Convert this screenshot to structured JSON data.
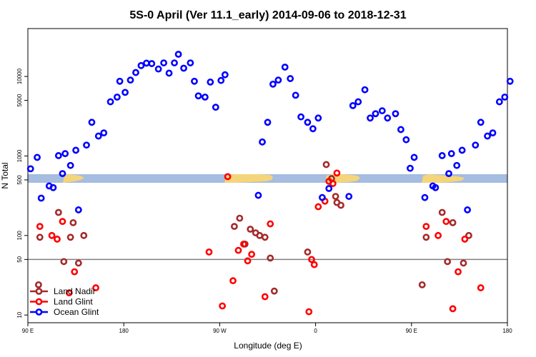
{
  "chart_data": {
    "type": "scatter",
    "title": "5S-0 April (Ver 11.1_early)   2014-09-06 to 2018-12-31",
    "xlabel": "Longitude (deg E)",
    "ylabel": "N Total",
    "y_scale": "log",
    "xlim": [
      90,
      450
    ],
    "ylim": [
      8,
      40000
    ],
    "x_ticks": [
      {
        "value": 90,
        "label": "90 E"
      },
      {
        "value": 162,
        "label": "180"
      },
      {
        "value": 234,
        "label": "90 W"
      },
      {
        "value": 306,
        "label": "0"
      },
      {
        "value": 378,
        "label": "90 E"
      },
      {
        "value": 450,
        "label": "180"
      }
    ],
    "y_ticks": [
      {
        "value": 10,
        "label": "10"
      },
      {
        "value": 50,
        "label": "50"
      },
      {
        "value": 100,
        "label": "100"
      },
      {
        "value": 500,
        "label": "500"
      },
      {
        "value": 1000,
        "label": "1000"
      },
      {
        "value": 5000,
        "label": "5000"
      },
      {
        "value": 10000,
        "label": "10000"
      }
    ],
    "reference_line": {
      "y": 50,
      "color": "#808080"
    },
    "legend": {
      "position": "bottom-left"
    },
    "series": [
      {
        "name": "Land Nadir",
        "color": "#a52a2a",
        "points": [
          [
            98,
            24
          ],
          [
            99,
            95
          ],
          [
            113,
            195
          ],
          [
            117,
            47
          ],
          [
            122,
            95
          ],
          [
            124,
            145
          ],
          [
            128,
            45
          ],
          [
            132,
            100
          ],
          [
            245,
            130
          ],
          [
            249,
            165
          ],
          [
            253,
            78
          ],
          [
            257,
            120
          ],
          [
            261,
            108
          ],
          [
            264,
            100
          ],
          [
            268,
            95
          ],
          [
            272,
            52
          ],
          [
            275,
            20
          ],
          [
            300,
            62
          ],
          [
            314,
            780
          ],
          [
            318,
            520
          ],
          [
            321,
            310
          ],
          [
            322,
            260
          ],
          [
            325,
            240
          ],
          [
            386,
            24
          ],
          [
            389,
            95
          ],
          [
            401,
            195
          ],
          [
            405,
            47
          ],
          [
            409,
            145
          ],
          [
            417,
            45
          ],
          [
            421,
            100
          ]
        ]
      },
      {
        "name": "Land Glint",
        "color": "#ff0000",
        "points": [
          [
            99,
            130
          ],
          [
            108,
            100
          ],
          [
            112,
            90
          ],
          [
            116,
            150
          ],
          [
            121,
            19
          ],
          [
            125,
            35
          ],
          [
            141,
            22
          ],
          [
            226,
            62
          ],
          [
            236,
            13
          ],
          [
            240,
            550
          ],
          [
            244,
            27
          ],
          [
            248,
            65
          ],
          [
            252,
            78
          ],
          [
            255,
            48
          ],
          [
            258,
            58
          ],
          [
            268,
            17
          ],
          [
            272,
            140
          ],
          [
            301,
            11
          ],
          [
            303,
            50
          ],
          [
            305,
            43
          ],
          [
            308,
            230
          ],
          [
            313,
            270
          ],
          [
            316,
            480
          ],
          [
            319,
            450
          ],
          [
            322,
            610
          ],
          [
            389,
            130
          ],
          [
            398,
            100
          ],
          [
            404,
            150
          ],
          [
            409,
            12
          ],
          [
            413,
            35
          ],
          [
            418,
            90
          ],
          [
            430,
            22
          ]
        ]
      },
      {
        "name": "Ocean Glint",
        "color": "#0000ff",
        "points": [
          [
            92,
            690
          ],
          [
            97,
            960
          ],
          [
            100,
            295
          ],
          [
            106,
            420
          ],
          [
            109,
            400
          ],
          [
            113,
            1010
          ],
          [
            116,
            600
          ],
          [
            118,
            1070
          ],
          [
            122,
            760
          ],
          [
            126,
            1180
          ],
          [
            128,
            210
          ],
          [
            134,
            1370
          ],
          [
            138,
            2650
          ],
          [
            143,
            1780
          ],
          [
            147,
            1950
          ],
          [
            152,
            4800
          ],
          [
            157,
            5500
          ],
          [
            159,
            8700
          ],
          [
            163,
            6300
          ],
          [
            167,
            9000
          ],
          [
            171,
            11200
          ],
          [
            175,
            13700
          ],
          [
            179,
            14700
          ],
          [
            183,
            14500
          ],
          [
            188,
            12400
          ],
          [
            192,
            14800
          ],
          [
            196,
            11000
          ],
          [
            200,
            14800
          ],
          [
            203,
            19000
          ],
          [
            207,
            12700
          ],
          [
            212,
            14800
          ],
          [
            215,
            8700
          ],
          [
            218,
            5700
          ],
          [
            223,
            5500
          ],
          [
            227,
            8500
          ],
          [
            231,
            4100
          ],
          [
            235,
            8900
          ],
          [
            238,
            10500
          ],
          [
            263,
            320
          ],
          [
            266,
            1500
          ],
          [
            270,
            2650
          ],
          [
            274,
            8000
          ],
          [
            278,
            9000
          ],
          [
            283,
            13100
          ],
          [
            287,
            9400
          ],
          [
            291,
            5800
          ],
          [
            295,
            3100
          ],
          [
            300,
            2650
          ],
          [
            304,
            2200
          ],
          [
            308,
            3000
          ],
          [
            311,
            300
          ],
          [
            316,
            390
          ],
          [
            331,
            310
          ],
          [
            334,
            4300
          ],
          [
            338,
            4800
          ],
          [
            343,
            6800
          ],
          [
            347,
            3000
          ],
          [
            351,
            3400
          ],
          [
            356,
            3700
          ],
          [
            360,
            3000
          ],
          [
            366,
            3400
          ],
          [
            370,
            2150
          ],
          [
            374,
            1600
          ],
          [
            377,
            700
          ],
          [
            380,
            960
          ],
          [
            388,
            300
          ],
          [
            394,
            420
          ],
          [
            396,
            400
          ],
          [
            401,
            1010
          ],
          [
            406,
            600
          ],
          [
            408,
            1070
          ],
          [
            412,
            760
          ],
          [
            416,
            1180
          ],
          [
            420,
            210
          ],
          [
            426,
            1370
          ],
          [
            430,
            2650
          ],
          [
            435,
            1780
          ],
          [
            439,
            1950
          ],
          [
            444,
            4800
          ],
          [
            448,
            5500
          ],
          [
            452,
            8700
          ]
        ]
      }
    ]
  }
}
